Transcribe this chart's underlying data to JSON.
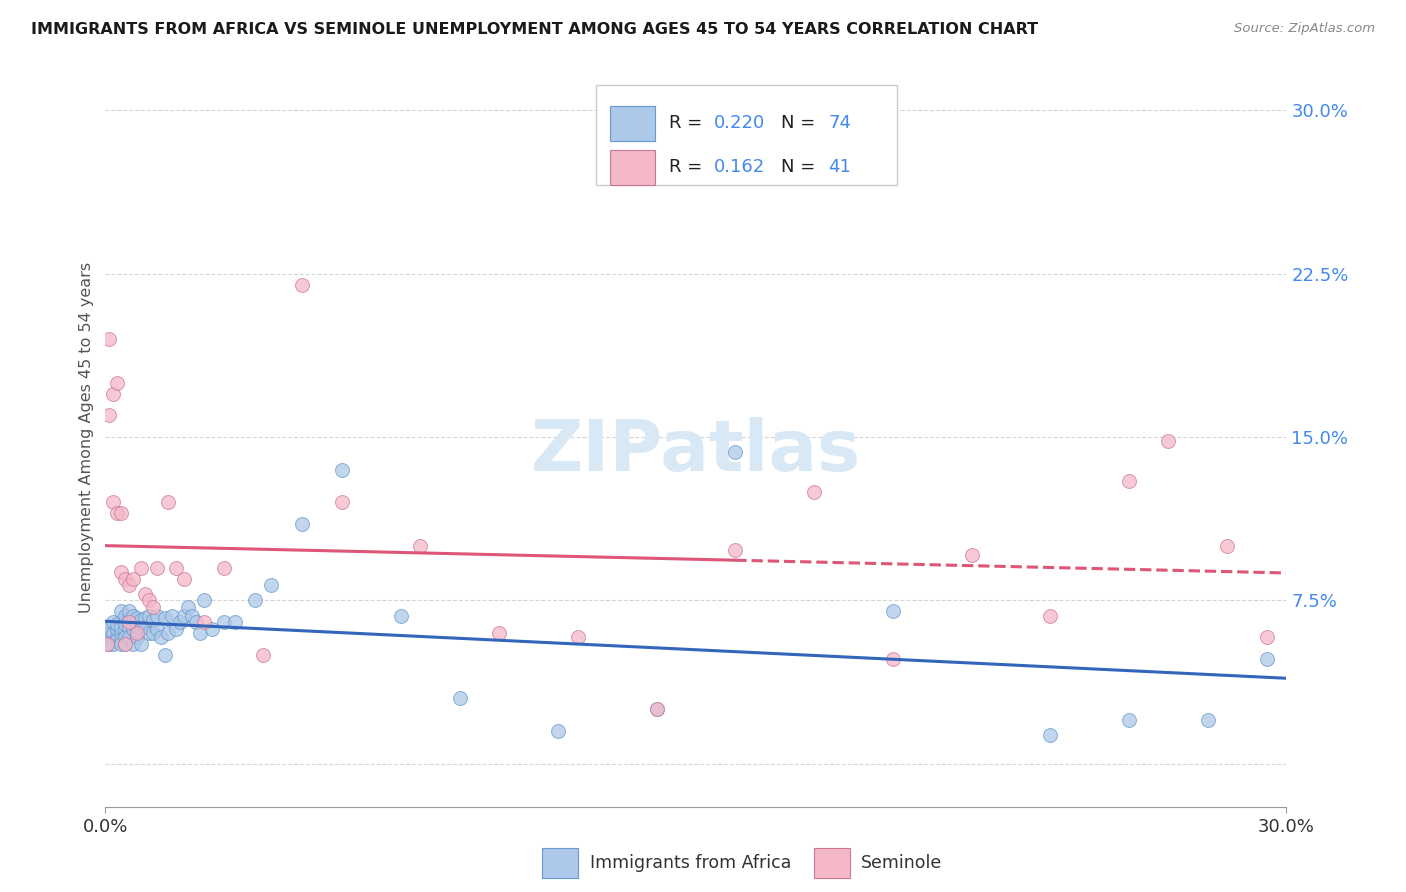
{
  "title": "IMMIGRANTS FROM AFRICA VS SEMINOLE UNEMPLOYMENT AMONG AGES 45 TO 54 YEARS CORRELATION CHART",
  "source": "Source: ZipAtlas.com",
  "ylabel": "Unemployment Among Ages 45 to 54 years",
  "xlim": [
    0.0,
    0.3
  ],
  "ylim": [
    -0.02,
    0.32
  ],
  "blue_color": "#adc8e8",
  "blue_edge_color": "#6699cc",
  "pink_color": "#f4b8c8",
  "pink_edge_color": "#cc7799",
  "blue_line_color": "#3366bb",
  "pink_line_color": "#dd5577",
  "watermark_color": "#d8e8f5",
  "blue_scatter_x": [
    0.0005,
    0.001,
    0.001,
    0.001,
    0.002,
    0.002,
    0.002,
    0.003,
    0.003,
    0.003,
    0.003,
    0.004,
    0.004,
    0.004,
    0.004,
    0.004,
    0.005,
    0.005,
    0.005,
    0.005,
    0.005,
    0.005,
    0.006,
    0.006,
    0.006,
    0.006,
    0.007,
    0.007,
    0.007,
    0.007,
    0.008,
    0.008,
    0.008,
    0.009,
    0.009,
    0.009,
    0.01,
    0.01,
    0.011,
    0.011,
    0.012,
    0.012,
    0.013,
    0.013,
    0.014,
    0.015,
    0.015,
    0.016,
    0.017,
    0.018,
    0.019,
    0.02,
    0.021,
    0.022,
    0.023,
    0.024,
    0.025,
    0.027,
    0.03,
    0.033,
    0.038,
    0.042,
    0.05,
    0.06,
    0.075,
    0.09,
    0.115,
    0.14,
    0.16,
    0.2,
    0.24,
    0.26,
    0.28,
    0.295
  ],
  "blue_scatter_y": [
    0.06,
    0.058,
    0.055,
    0.062,
    0.06,
    0.055,
    0.065,
    0.058,
    0.062,
    0.057,
    0.064,
    0.06,
    0.063,
    0.057,
    0.07,
    0.055,
    0.062,
    0.066,
    0.058,
    0.064,
    0.068,
    0.055,
    0.066,
    0.063,
    0.07,
    0.058,
    0.065,
    0.062,
    0.068,
    0.055,
    0.067,
    0.063,
    0.058,
    0.066,
    0.062,
    0.055,
    0.067,
    0.063,
    0.068,
    0.06,
    0.066,
    0.06,
    0.068,
    0.062,
    0.058,
    0.067,
    0.05,
    0.06,
    0.068,
    0.062,
    0.065,
    0.068,
    0.072,
    0.068,
    0.065,
    0.06,
    0.075,
    0.062,
    0.065,
    0.065,
    0.075,
    0.082,
    0.11,
    0.135,
    0.068,
    0.03,
    0.015,
    0.025,
    0.143,
    0.07,
    0.013,
    0.02,
    0.02,
    0.048
  ],
  "pink_scatter_x": [
    0.0005,
    0.001,
    0.001,
    0.002,
    0.002,
    0.003,
    0.003,
    0.004,
    0.004,
    0.005,
    0.005,
    0.006,
    0.006,
    0.007,
    0.008,
    0.009,
    0.01,
    0.011,
    0.012,
    0.013,
    0.016,
    0.018,
    0.02,
    0.025,
    0.03,
    0.04,
    0.05,
    0.06,
    0.08,
    0.1,
    0.12,
    0.14,
    0.16,
    0.18,
    0.2,
    0.22,
    0.24,
    0.26,
    0.27,
    0.285,
    0.295
  ],
  "pink_scatter_y": [
    0.055,
    0.195,
    0.16,
    0.17,
    0.12,
    0.175,
    0.115,
    0.115,
    0.088,
    0.085,
    0.055,
    0.082,
    0.065,
    0.085,
    0.06,
    0.09,
    0.078,
    0.075,
    0.072,
    0.09,
    0.12,
    0.09,
    0.085,
    0.065,
    0.09,
    0.05,
    0.22,
    0.12,
    0.1,
    0.06,
    0.058,
    0.025,
    0.098,
    0.125,
    0.048,
    0.096,
    0.068,
    0.13,
    0.148,
    0.1,
    0.058
  ]
}
